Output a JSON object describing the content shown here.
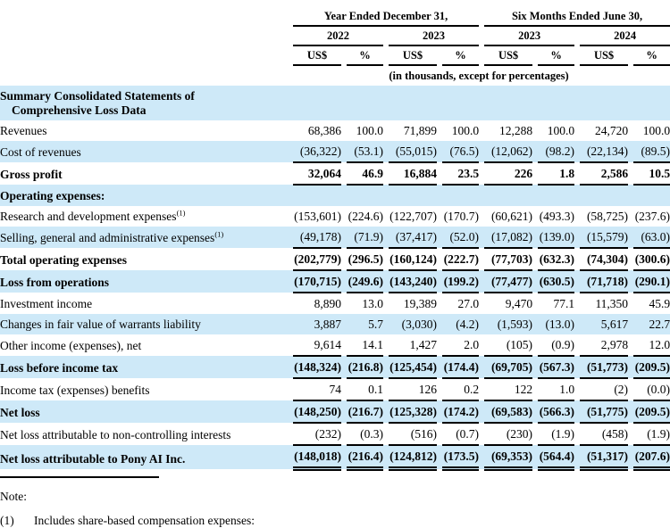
{
  "colors": {
    "row_highlight": "#cee9f8",
    "rule": "#000000",
    "text": "#000000"
  },
  "table": {
    "col_groups": [
      {
        "label": "Year Ended December 31,"
      },
      {
        "label": "Six Months Ended June 30,"
      }
    ],
    "years": [
      "2022",
      "2023",
      "2023",
      "2024"
    ],
    "unit_headers": [
      "US$",
      "%",
      "US$",
      "%",
      "US$",
      "%",
      "US$",
      "%"
    ],
    "units_note": "(in thousands, except for percentages)",
    "rows": [
      {
        "label_lines": [
          "Summary Consolidated Statements of",
          "Comprehensive Loss Data"
        ],
        "bold": true,
        "shaded": true,
        "rule": "none",
        "values": []
      },
      {
        "label": "Revenues",
        "bold": false,
        "shaded": false,
        "rule": "none",
        "values": [
          "68,386",
          "100.0",
          "71,899",
          "100.0",
          "12,288",
          "100.0",
          "24,720",
          "100.0"
        ]
      },
      {
        "label": "Cost of revenues",
        "bold": false,
        "shaded": true,
        "rule": "single",
        "values": [
          "(36,322)",
          "(53.1)",
          "(55,015)",
          "(76.5)",
          "(12,062)",
          "(98.2)",
          "(22,134)",
          "(89.5)"
        ]
      },
      {
        "label": "Gross profit",
        "bold": true,
        "shaded": false,
        "rule": "single",
        "values": [
          "32,064",
          "46.9",
          "16,884",
          "23.5",
          "226",
          "1.8",
          "2,586",
          "10.5"
        ]
      },
      {
        "label": "Operating expenses:",
        "bold": true,
        "shaded": true,
        "rule": "none",
        "values": []
      },
      {
        "label": "Research and development expenses",
        "sup": "(1)",
        "bold": false,
        "shaded": false,
        "rule": "none",
        "values": [
          "(153,601)",
          "(224.6)",
          "(122,707)",
          "(170.7)",
          "(60,621)",
          "(493.3)",
          "(58,725)",
          "(237.6)"
        ]
      },
      {
        "label": "Selling, general and administrative expenses",
        "sup": "(1)",
        "bold": false,
        "shaded": true,
        "rule": "single",
        "values": [
          "(49,178)",
          "(71.9)",
          "(37,417)",
          "(52.0)",
          "(17,082)",
          "(139.0)",
          "(15,579)",
          "(63.0)"
        ]
      },
      {
        "label": "Total operating expenses",
        "bold": true,
        "shaded": false,
        "rule": "single",
        "values": [
          "(202,779)",
          "(296.5)",
          "(160,124)",
          "(222.7)",
          "(77,703)",
          "(632.3)",
          "(74,304)",
          "(300.6)"
        ]
      },
      {
        "label": "Loss from operations",
        "bold": true,
        "shaded": true,
        "rule": "single",
        "values": [
          "(170,715)",
          "(249.6)",
          "(143,240)",
          "(199.2)",
          "(77,477)",
          "(630.5)",
          "(71,718)",
          "(290.1)"
        ]
      },
      {
        "label": "Investment income",
        "bold": false,
        "shaded": false,
        "rule": "none",
        "values": [
          "8,890",
          "13.0",
          "19,389",
          "27.0",
          "9,470",
          "77.1",
          "11,350",
          "45.9"
        ]
      },
      {
        "label": "Changes in fair value of warrants liability",
        "bold": false,
        "shaded": true,
        "rule": "none",
        "values": [
          "3,887",
          "5.7",
          "(3,030)",
          "(4.2)",
          "(1,593)",
          "(13.0)",
          "5,617",
          "22.7"
        ]
      },
      {
        "label": "Other income (expenses), net",
        "bold": false,
        "shaded": false,
        "rule": "single",
        "values": [
          "9,614",
          "14.1",
          "1,427",
          "2.0",
          "(105)",
          "(0.9)",
          "2,978",
          "12.0"
        ]
      },
      {
        "label": "Loss before income tax",
        "bold": true,
        "shaded": true,
        "rule": "single",
        "values": [
          "(148,324)",
          "(216.8)",
          "(125,454)",
          "(174.4)",
          "(69,705)",
          "(567.3)",
          "(51,773)",
          "(209.5)"
        ]
      },
      {
        "label": "Income tax (expenses) benefits",
        "bold": false,
        "shaded": false,
        "rule": "single",
        "values": [
          "74",
          "0.1",
          "126",
          "0.2",
          "122",
          "1.0",
          "(2)",
          "(0.0)"
        ]
      },
      {
        "label": "Net loss",
        "bold": true,
        "shaded": true,
        "rule": "single",
        "values": [
          "(148,250)",
          "(216.7)",
          "(125,328)",
          "(174.2)",
          "(69,583)",
          "(566.3)",
          "(51,775)",
          "(209.5)"
        ]
      },
      {
        "label": "Net loss attributable to non-controlling interests",
        "bold": false,
        "shaded": false,
        "rule": "single",
        "values": [
          "(232)",
          "(0.3)",
          "(516)",
          "(0.7)",
          "(230)",
          "(1.9)",
          "(458)",
          "(1.9)"
        ]
      },
      {
        "label": "Net loss attributable to Pony AI Inc.",
        "bold": true,
        "shaded": true,
        "rule": "double",
        "values": [
          "(148,018)",
          "(216.4)",
          "(124,812)",
          "(173.5)",
          "(69,353)",
          "(564.4)",
          "(51,317)",
          "(207.6)"
        ]
      }
    ]
  },
  "footer": {
    "note_label": "Note:",
    "footnote_marker": "(1)",
    "footnote_text": "Includes share-based compensation expenses:"
  }
}
